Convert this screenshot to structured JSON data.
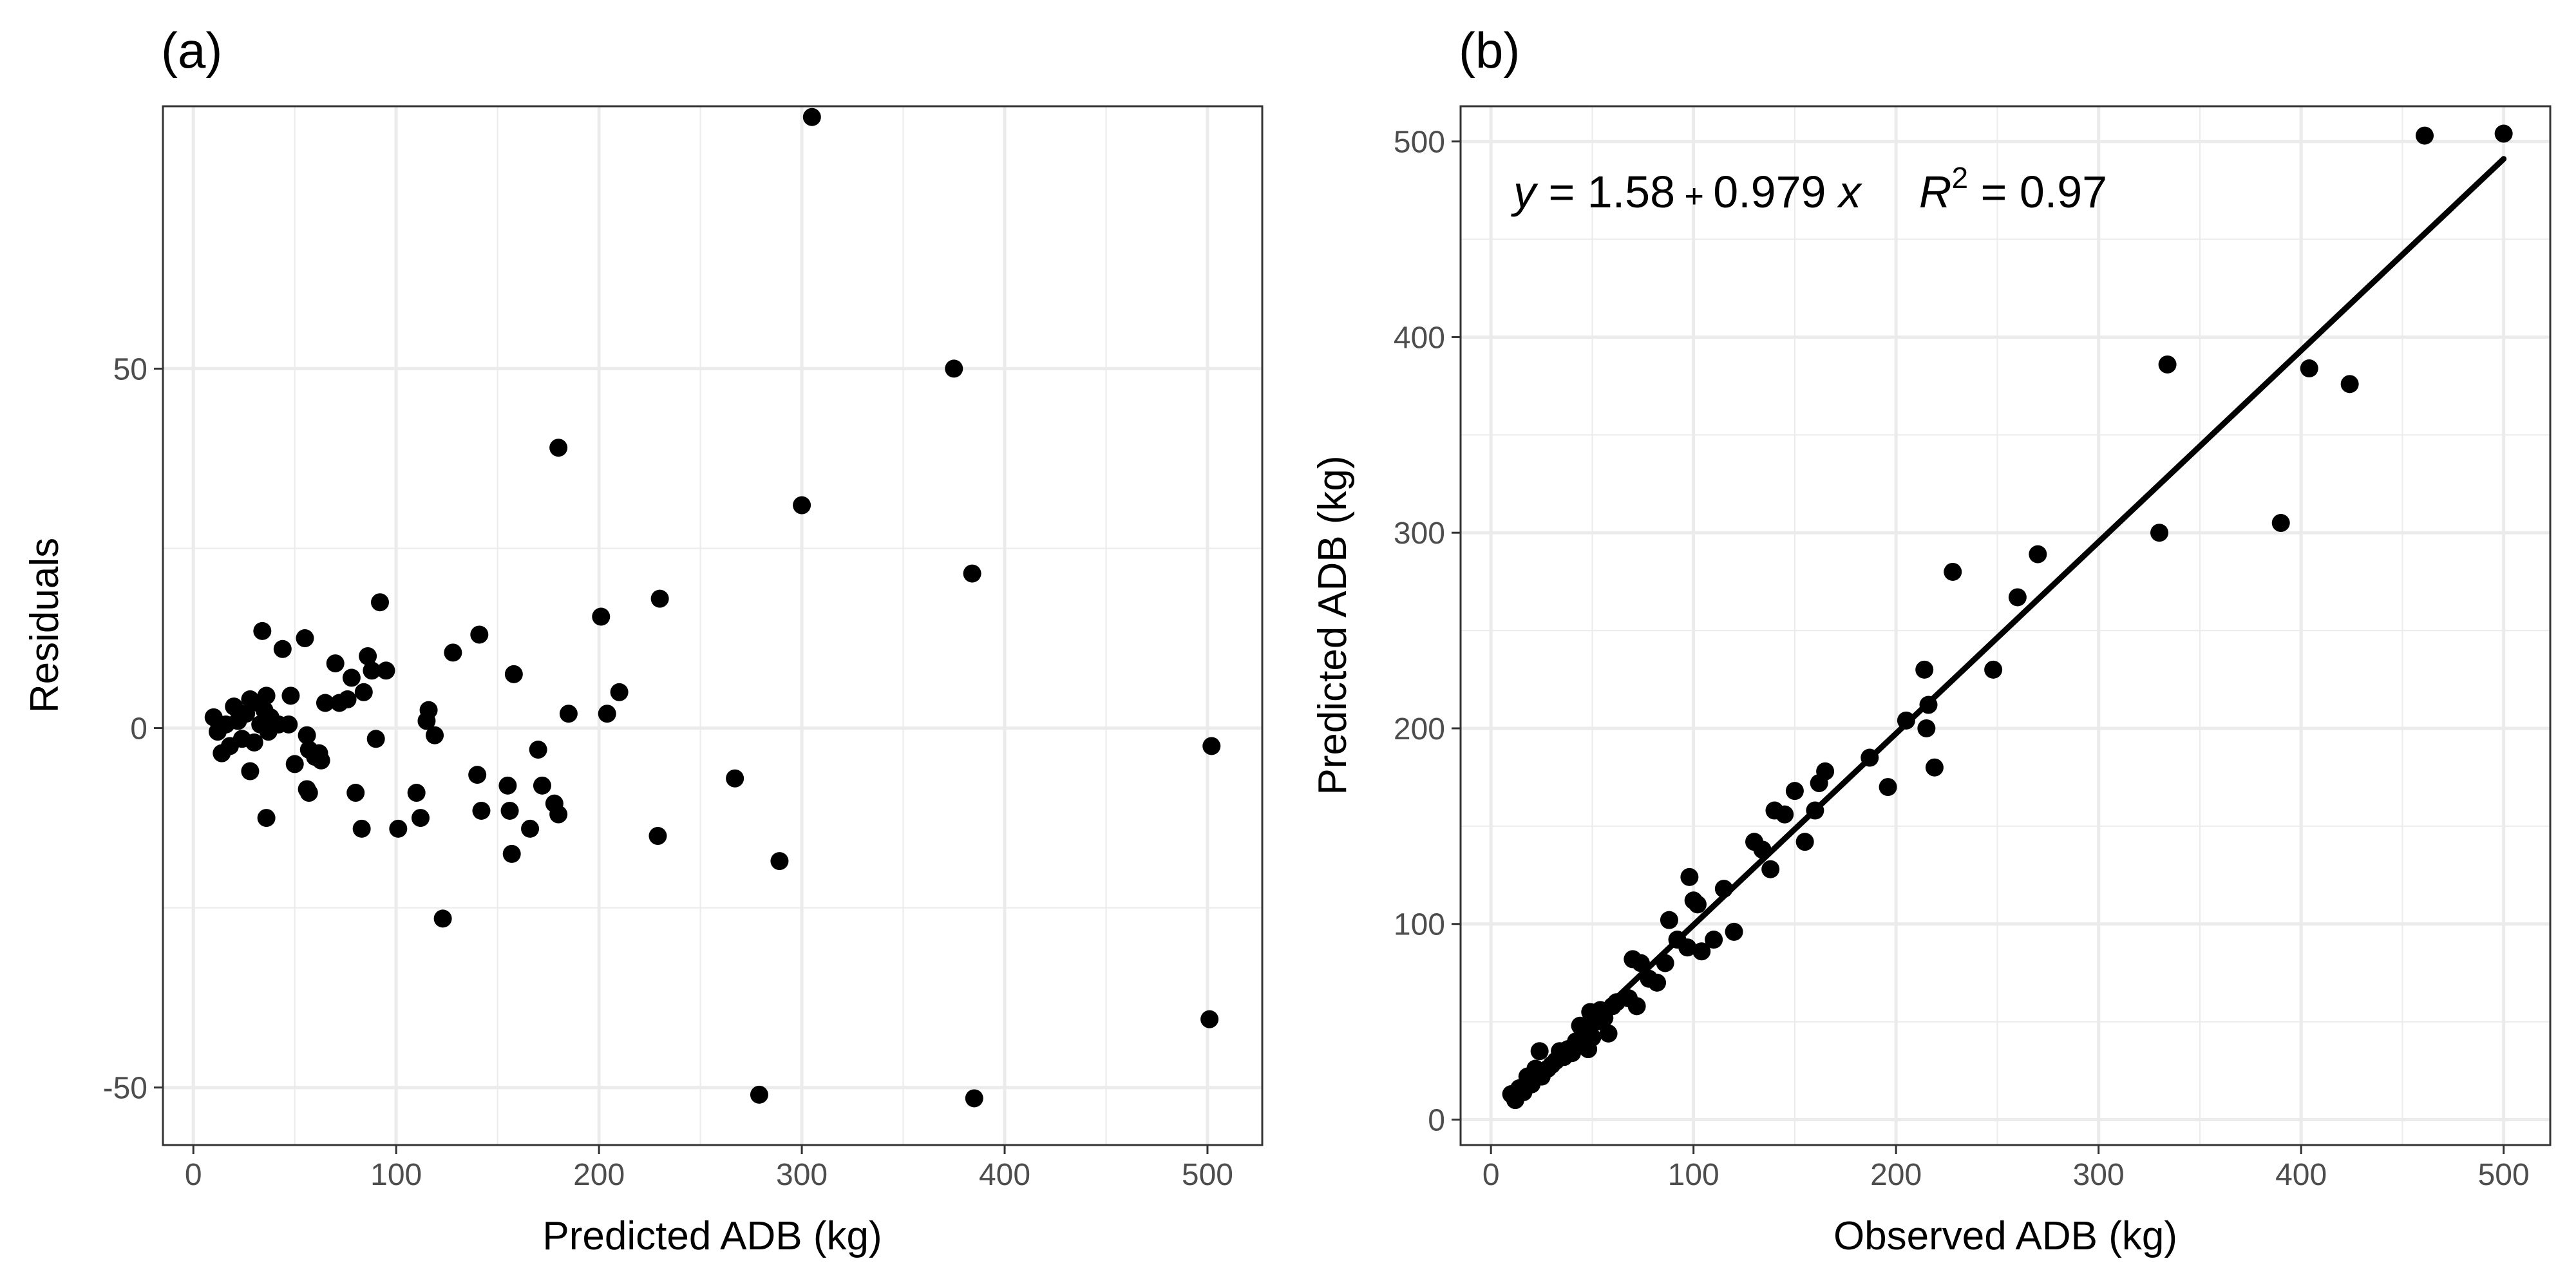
{
  "figure": {
    "panels": [
      {
        "label": "(a)",
        "xlabel": "Predicted ADB (kg)",
        "ylabel": "Residuals",
        "xlim": [
          -15,
          527
        ],
        "ylim": [
          -58,
          86.5
        ],
        "xticks": [
          0,
          100,
          200,
          300,
          400,
          500
        ],
        "xtick_labels": [
          "0",
          "100",
          "200",
          "300",
          "400",
          "500"
        ],
        "yticks": [
          -50,
          0,
          50
        ],
        "ytick_labels": [
          "-50",
          "0",
          "50"
        ]
      },
      {
        "label": "(b)",
        "xlabel": "Observed ADB (kg)",
        "ylabel": "Predicted ADB (kg)",
        "xlim": [
          -15,
          523
        ],
        "ylim": [
          -13,
          518
        ],
        "xticks": [
          0,
          100,
          200,
          300,
          400,
          500
        ],
        "xtick_labels": [
          "0",
          "100",
          "200",
          "300",
          "400",
          "500"
        ],
        "yticks": [
          0,
          100,
          200,
          300,
          400,
          500
        ],
        "ytick_labels": [
          "0",
          "100",
          "200",
          "300",
          "400",
          "500"
        ],
        "equation": {
          "y": "y",
          "eq1": " = 1.58",
          "plus": " + ",
          "eq2": "0.979 ",
          "x": "x",
          "r": "R",
          "sup": "2",
          "eq3": " = 0.97"
        }
      }
    ]
  },
  "chart_data": [
    {
      "type": "scatter",
      "grid": true,
      "points": [
        [
          10,
          1.5
        ],
        [
          12,
          -0.5
        ],
        [
          14,
          -3.5
        ],
        [
          16,
          0.5
        ],
        [
          18,
          -2.5
        ],
        [
          20,
          3
        ],
        [
          22,
          1
        ],
        [
          24,
          -1.5
        ],
        [
          26,
          2
        ],
        [
          28,
          -6
        ],
        [
          28,
          4
        ],
        [
          30,
          -2
        ],
        [
          32,
          3.5
        ],
        [
          33,
          0.5
        ],
        [
          34,
          13.5
        ],
        [
          35,
          2.5
        ],
        [
          36,
          -12.5
        ],
        [
          36,
          4.5
        ],
        [
          37,
          -0.5
        ],
        [
          38,
          1.5
        ],
        [
          42,
          0.5
        ],
        [
          44,
          11
        ],
        [
          47,
          0.5
        ],
        [
          48,
          4.5
        ],
        [
          50,
          -5
        ],
        [
          55,
          12.5
        ],
        [
          56,
          -1
        ],
        [
          56,
          -8.5
        ],
        [
          57,
          -9
        ],
        [
          57,
          -3
        ],
        [
          60,
          -4
        ],
        [
          62,
          -3.5
        ],
        [
          63,
          -4.5
        ],
        [
          65,
          3.5
        ],
        [
          70,
          9
        ],
        [
          72,
          3.5
        ],
        [
          76,
          4
        ],
        [
          78,
          7
        ],
        [
          80,
          -9
        ],
        [
          83,
          -14
        ],
        [
          84,
          5
        ],
        [
          86,
          10
        ],
        [
          88,
          8
        ],
        [
          90,
          -1.5
        ],
        [
          92,
          17.5
        ],
        [
          95,
          8
        ],
        [
          101,
          -14
        ],
        [
          110,
          -9
        ],
        [
          112,
          -12.5
        ],
        [
          115,
          1
        ],
        [
          116,
          2.5
        ],
        [
          119,
          -1
        ],
        [
          123,
          -26.5
        ],
        [
          128,
          10.5
        ],
        [
          140,
          -6.5
        ],
        [
          141,
          13
        ],
        [
          142,
          -11.5
        ],
        [
          155,
          -8
        ],
        [
          156,
          -11.5
        ],
        [
          157,
          -17.5
        ],
        [
          158,
          7.5
        ],
        [
          166,
          -14
        ],
        [
          170,
          -3
        ],
        [
          172,
          -8
        ],
        [
          178,
          -10.5
        ],
        [
          180,
          -12
        ],
        [
          180,
          39
        ],
        [
          185,
          2
        ],
        [
          201,
          15.5
        ],
        [
          204,
          2
        ],
        [
          210,
          5
        ],
        [
          229,
          -15
        ],
        [
          230,
          18
        ],
        [
          267,
          -7
        ],
        [
          279,
          -51
        ],
        [
          289,
          -18.5
        ],
        [
          300,
          31
        ],
        [
          305,
          85
        ],
        [
          375,
          50
        ],
        [
          384,
          21.5
        ],
        [
          385,
          -51.5
        ],
        [
          501,
          -40.5
        ],
        [
          502,
          -2.5
        ]
      ]
    },
    {
      "type": "scatter",
      "grid": true,
      "points": [
        [
          10,
          13
        ],
        [
          12,
          10
        ],
        [
          14,
          16
        ],
        [
          16,
          14
        ],
        [
          18,
          22
        ],
        [
          20,
          18
        ],
        [
          22,
          26
        ],
        [
          24,
          35
        ],
        [
          25,
          22
        ],
        [
          28,
          26
        ],
        [
          30,
          28
        ],
        [
          32,
          30
        ],
        [
          34,
          35
        ],
        [
          36,
          32
        ],
        [
          38,
          36
        ],
        [
          40,
          34
        ],
        [
          42,
          40
        ],
        [
          44,
          48
        ],
        [
          46,
          44
        ],
        [
          48,
          36
        ],
        [
          49,
          55
        ],
        [
          50,
          42
        ],
        [
          52,
          50
        ],
        [
          54,
          56
        ],
        [
          56,
          52
        ],
        [
          58,
          44
        ],
        [
          60,
          58
        ],
        [
          62,
          60
        ],
        [
          68,
          62
        ],
        [
          70,
          82
        ],
        [
          72,
          58
        ],
        [
          74,
          80
        ],
        [
          78,
          72
        ],
        [
          82,
          70
        ],
        [
          86,
          80
        ],
        [
          88,
          102
        ],
        [
          92,
          92
        ],
        [
          97,
          88
        ],
        [
          98,
          124
        ],
        [
          100,
          112
        ],
        [
          102,
          110
        ],
        [
          104,
          86
        ],
        [
          110,
          92
        ],
        [
          115,
          118
        ],
        [
          120,
          96
        ],
        [
          130,
          142
        ],
        [
          134,
          138
        ],
        [
          138,
          128
        ],
        [
          140,
          158
        ],
        [
          145,
          156
        ],
        [
          150,
          168
        ],
        [
          155,
          142
        ],
        [
          160,
          158
        ],
        [
          162,
          172
        ],
        [
          165,
          178
        ],
        [
          187,
          185
        ],
        [
          196,
          170
        ],
        [
          205,
          204
        ],
        [
          214,
          230
        ],
        [
          215,
          200
        ],
        [
          216,
          212
        ],
        [
          219,
          180
        ],
        [
          228,
          280
        ],
        [
          248,
          230
        ],
        [
          260,
          267
        ],
        [
          270,
          289
        ],
        [
          330,
          300
        ],
        [
          334,
          386
        ],
        [
          390,
          305
        ],
        [
          404,
          384
        ],
        [
          424,
          376
        ],
        [
          461,
          503
        ],
        [
          500,
          504
        ]
      ],
      "fit": {
        "intercept": 1.58,
        "slope": 0.979,
        "x_range": [
          10,
          500
        ],
        "r2": 0.97
      }
    }
  ]
}
